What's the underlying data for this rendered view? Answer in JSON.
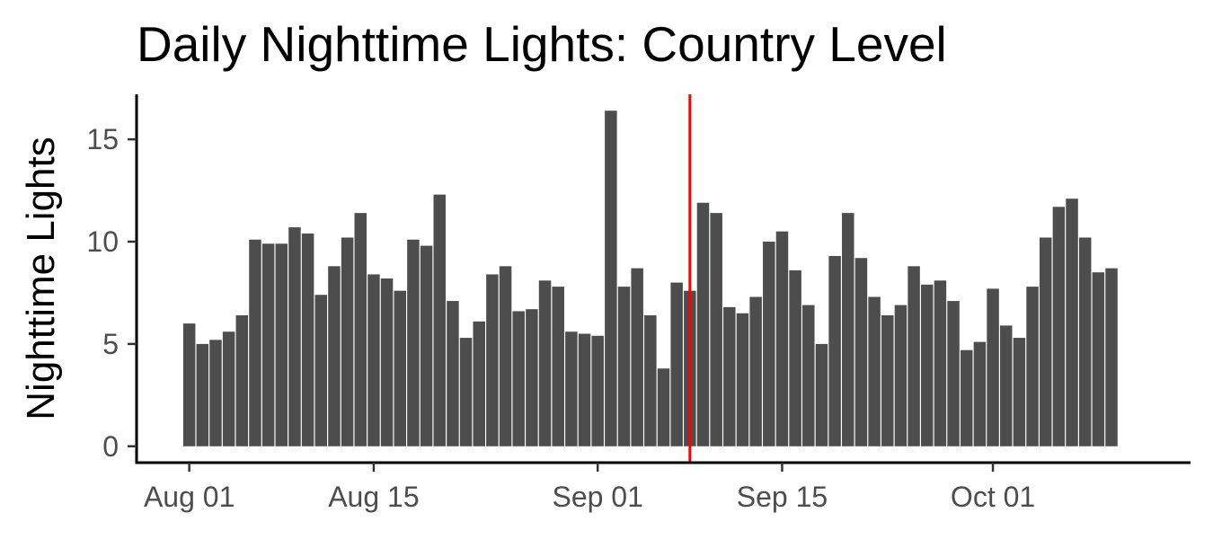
{
  "chart_data": {
    "type": "bar",
    "title": "Daily Nighttime Lights: Country Level",
    "xlabel": "",
    "ylabel": "Nighttime Lights",
    "x_start": "2023-08-01",
    "dates": [
      "2023-08-01",
      "2023-08-02",
      "2023-08-03",
      "2023-08-04",
      "2023-08-05",
      "2023-08-06",
      "2023-08-07",
      "2023-08-08",
      "2023-08-09",
      "2023-08-10",
      "2023-08-11",
      "2023-08-12",
      "2023-08-13",
      "2023-08-14",
      "2023-08-15",
      "2023-08-16",
      "2023-08-17",
      "2023-08-18",
      "2023-08-19",
      "2023-08-20",
      "2023-08-21",
      "2023-08-22",
      "2023-08-23",
      "2023-08-24",
      "2023-08-25",
      "2023-08-26",
      "2023-08-27",
      "2023-08-28",
      "2023-08-29",
      "2023-08-30",
      "2023-08-31",
      "2023-09-01",
      "2023-09-02",
      "2023-09-03",
      "2023-09-04",
      "2023-09-05",
      "2023-09-06",
      "2023-09-07",
      "2023-09-08",
      "2023-09-09",
      "2023-09-10",
      "2023-09-11",
      "2023-09-12",
      "2023-09-13",
      "2023-09-14",
      "2023-09-15",
      "2023-09-16",
      "2023-09-17",
      "2023-09-18",
      "2023-09-19",
      "2023-09-20",
      "2023-09-21",
      "2023-09-22",
      "2023-09-23",
      "2023-09-24",
      "2023-09-25",
      "2023-09-26",
      "2023-09-27",
      "2023-09-28",
      "2023-09-29",
      "2023-09-30",
      "2023-10-01",
      "2023-10-02",
      "2023-10-03",
      "2023-10-04",
      "2023-10-05",
      "2023-10-06",
      "2023-10-07",
      "2023-10-08",
      "2023-10-09",
      "2023-10-10"
    ],
    "values": [
      6.0,
      5.0,
      5.2,
      5.6,
      6.4,
      10.1,
      9.9,
      9.9,
      10.7,
      10.4,
      7.4,
      8.8,
      10.2,
      11.4,
      8.4,
      8.2,
      7.6,
      10.1,
      9.8,
      12.3,
      7.1,
      5.3,
      6.1,
      8.4,
      8.8,
      6.6,
      6.7,
      8.1,
      7.8,
      5.6,
      5.5,
      5.4,
      16.4,
      7.8,
      8.7,
      6.4,
      3.8,
      8.0,
      7.6,
      11.9,
      11.4,
      6.8,
      6.5,
      7.3,
      10.0,
      10.5,
      8.6,
      6.9,
      5.0,
      9.3,
      11.4,
      9.2,
      7.3,
      6.4,
      6.9,
      8.8,
      7.9,
      8.1,
      7.1,
      4.7,
      5.1,
      7.7,
      5.9,
      5.3,
      7.8,
      10.2,
      11.7,
      12.1,
      10.2,
      8.5,
      8.7
    ],
    "x_ticks": [
      {
        "label": "Aug 01",
        "date": "2023-08-01"
      },
      {
        "label": "Aug 15",
        "date": "2023-08-15"
      },
      {
        "label": "Sep 01",
        "date": "2023-09-01"
      },
      {
        "label": "Sep 15",
        "date": "2023-09-15"
      },
      {
        "label": "Oct 01",
        "date": "2023-10-01"
      }
    ],
    "y_ticks": [
      0,
      5,
      10,
      15
    ],
    "ylim": [
      -0.8,
      17.2
    ],
    "xlim": [
      "2023-07-28",
      "2023-10-16"
    ],
    "vline": {
      "date": "2023-09-08",
      "color": "#ff0000"
    },
    "bar_color": "#4d4d4d",
    "grid": false,
    "legend": "none"
  }
}
